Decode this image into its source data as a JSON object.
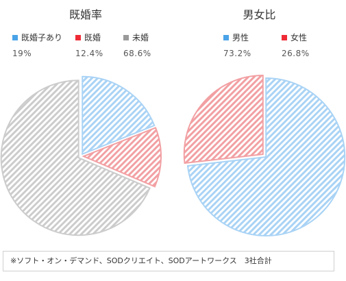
{
  "chart_data": [
    {
      "type": "pie",
      "title": "既婚率",
      "legend_placement": "top",
      "series": [
        {
          "name": "既婚子あり",
          "label": "19%",
          "value": 19,
          "color": "#4aa3e8",
          "slice_color": "#a9d3f5"
        },
        {
          "name": "既婚",
          "label": "12.4%",
          "value": 12.4,
          "color": "#ef2b36",
          "slice_color": "#f2a0a3"
        },
        {
          "name": "未婚",
          "label": "68.6%",
          "value": 68.6,
          "color": "#9a9a9a",
          "slice_color": "#cccccc"
        }
      ]
    },
    {
      "type": "pie",
      "title": "男女比",
      "legend_placement": "top",
      "series": [
        {
          "name": "男性",
          "label": "73.2%",
          "value": 73.2,
          "color": "#4aa3e8",
          "slice_color": "#a9d3f5"
        },
        {
          "name": "女性",
          "label": "26.8%",
          "value": 26.8,
          "color": "#ef2b36",
          "slice_color": "#f2a0a3"
        }
      ]
    }
  ],
  "footnote": "※ソフト・オン・デマンド、SODクリエイト、SODアートワークス　3社合計"
}
